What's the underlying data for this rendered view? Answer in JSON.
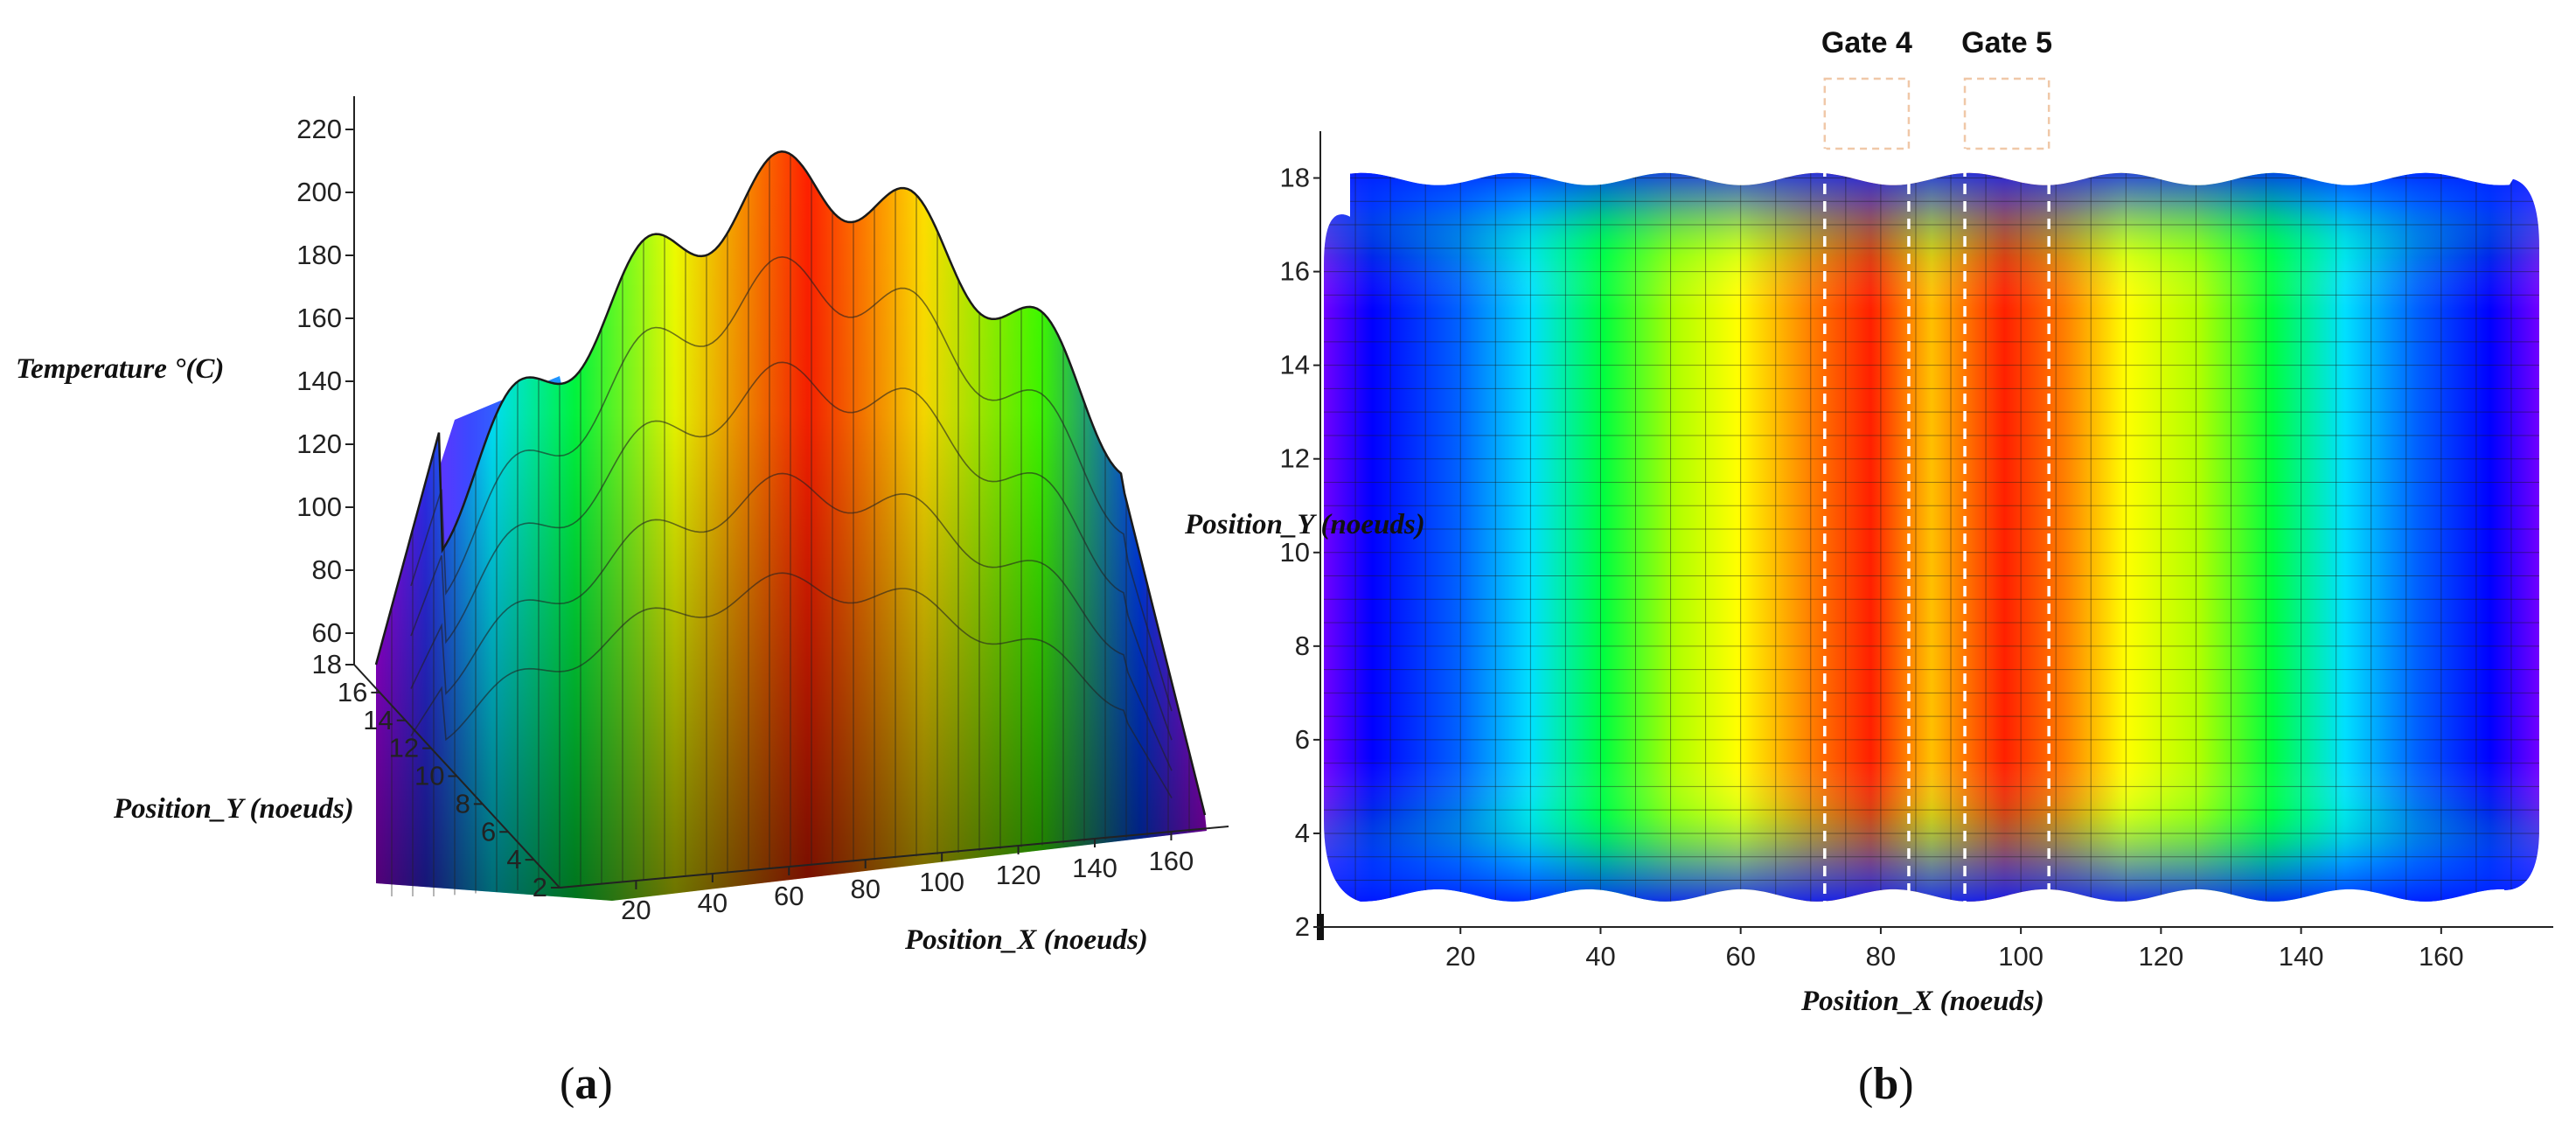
{
  "chart_data": [
    {
      "type": "surface3d",
      "panel_label": "(a)",
      "panel_letter": "a",
      "zlabel": "Temperature °(C)",
      "ylabel": "Position_Y (noeuds)",
      "xlabel": "Position_X (noeuds)",
      "z_ticks": [
        "60",
        "80",
        "100",
        "120",
        "140",
        "160",
        "180",
        "200",
        "220"
      ],
      "y_ticks": [
        "2",
        "4",
        "6",
        "8",
        "10",
        "12",
        "14",
        "16",
        "18"
      ],
      "x_ticks": [
        "20",
        "40",
        "60",
        "80",
        "100",
        "120",
        "140",
        "160"
      ],
      "zlim": [
        50,
        225
      ],
      "xlim": [
        0,
        175
      ],
      "ylim": [
        2,
        18
      ],
      "colormap": [
        "#ff00ff",
        "#0000ff",
        "#00ffff",
        "#00ff00",
        "#ffff00",
        "#ff0000"
      ]
    },
    {
      "type": "heatmap",
      "panel_label": "(b)",
      "panel_letter": "b",
      "ylabel": "Position_Y (noeuds)",
      "xlabel": "Position_X (noeuds)",
      "y_ticks": [
        "2",
        "4",
        "6",
        "8",
        "10",
        "12",
        "14",
        "16",
        "18"
      ],
      "x_ticks": [
        "20",
        "40",
        "60",
        "80",
        "100",
        "120",
        "140",
        "160"
      ],
      "xlim": [
        0,
        176
      ],
      "ylim": [
        2,
        19
      ],
      "annotations": [
        {
          "label": "Gate 4",
          "x_center": 78,
          "x_range": [
            72,
            84
          ]
        },
        {
          "label": "Gate 5",
          "x_center": 98,
          "x_range": [
            92,
            104
          ]
        }
      ],
      "colormap": [
        "#6000ff",
        "#0000ff",
        "#00ffff",
        "#00ff00",
        "#ffff00",
        "#ff8000",
        "#ff0000"
      ]
    }
  ]
}
